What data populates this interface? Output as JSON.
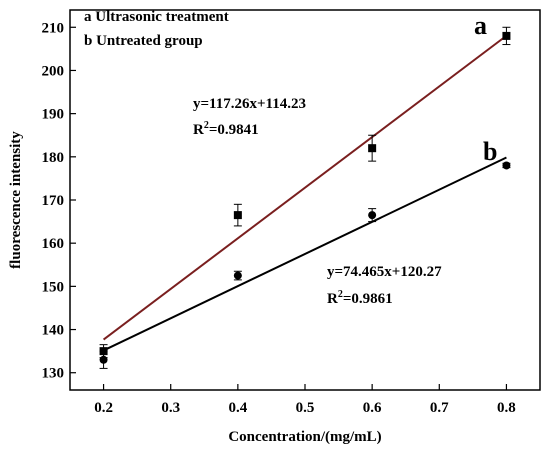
{
  "chart_data": {
    "type": "scatter",
    "title": "",
    "xlabel": "Concentration/(mg/mL)",
    "ylabel": "fluorescence intensity",
    "xlim": [
      0.15,
      0.85
    ],
    "ylim": [
      126,
      214
    ],
    "x_ticks": [
      0.2,
      0.3,
      0.4,
      0.5,
      0.6,
      0.7,
      0.8
    ],
    "x_tick_labels": [
      "0.2",
      "0.3",
      "0.4",
      "0.5",
      "0.6",
      "0.7",
      "0.8"
    ],
    "y_ticks": [
      130,
      140,
      150,
      160,
      170,
      180,
      190,
      200,
      210
    ],
    "y_tick_labels": [
      "130",
      "140",
      "150",
      "160",
      "170",
      "180",
      "190",
      "200",
      "210"
    ],
    "legend": {
      "position": "top-left",
      "entries": [
        "a Ultrasonic treatment",
        "b Untreated group"
      ]
    },
    "series": [
      {
        "tag": "a",
        "marker": "square",
        "line_color": "#7a1f1f",
        "x": [
          0.2,
          0.4,
          0.6,
          0.8
        ],
        "y": [
          135,
          166.5,
          182,
          208
        ],
        "err": [
          1.5,
          2.5,
          3.0,
          2.0
        ],
        "fit": {
          "slope": 117.26,
          "intercept": 114.23
        },
        "equation": "y=117.26x+114.23",
        "r2_prefix": "R",
        "r2_sup": "2",
        "r2_value": "=0.9841"
      },
      {
        "tag": "b",
        "marker": "circle",
        "line_color": "#000000",
        "x": [
          0.2,
          0.4,
          0.6,
          0.8
        ],
        "y": [
          133,
          152.5,
          166.5,
          178
        ],
        "err": [
          2.0,
          1.0,
          1.5,
          0.5
        ],
        "fit": {
          "slope": 74.465,
          "intercept": 120.27
        },
        "equation": "y=74.465x+120.27",
        "r2_prefix": "R",
        "r2_sup": "2",
        "r2_value": "=0.9861"
      }
    ]
  }
}
